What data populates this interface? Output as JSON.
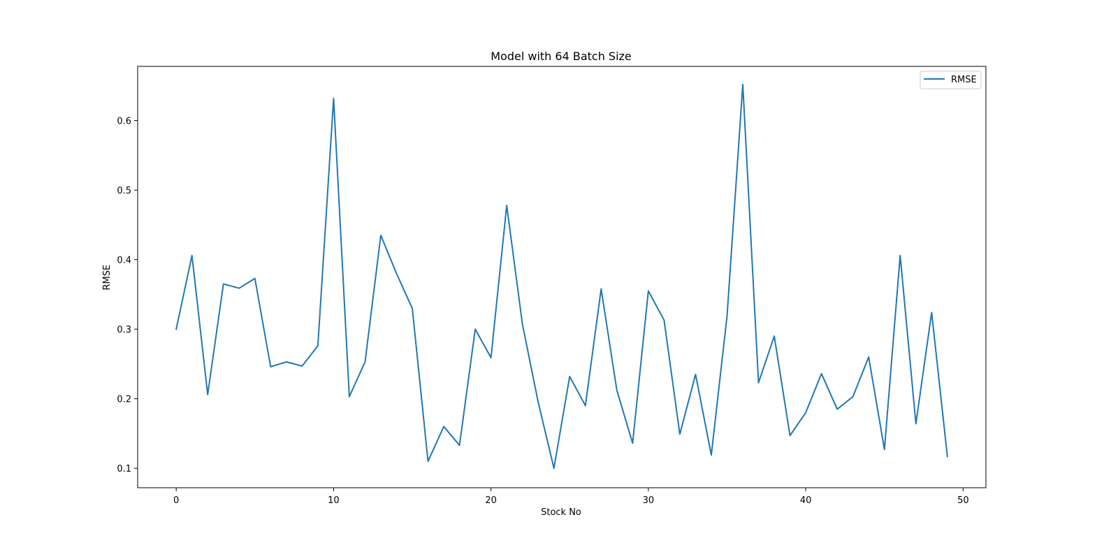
{
  "chart_data": {
    "type": "line",
    "title": "Model with 64 Batch Size",
    "xlabel": "Stock No",
    "ylabel": "RMSE",
    "xlim": [
      -2.45,
      51.45
    ],
    "ylim": [
      0.072,
      0.678
    ],
    "xticks": [
      0,
      10,
      20,
      30,
      40,
      50
    ],
    "yticks": [
      0.1,
      0.2,
      0.3,
      0.4,
      0.5,
      0.6
    ],
    "grid": false,
    "legend_position": "top-right",
    "series": [
      {
        "name": "RMSE",
        "color": "#1f77b4",
        "x": [
          0,
          1,
          2,
          3,
          4,
          5,
          6,
          7,
          8,
          9,
          10,
          11,
          12,
          13,
          14,
          15,
          16,
          17,
          18,
          19,
          20,
          21,
          22,
          23,
          24,
          25,
          26,
          27,
          28,
          29,
          30,
          31,
          32,
          33,
          34,
          35,
          36,
          37,
          38,
          39,
          40,
          41,
          42,
          43,
          44,
          45,
          46,
          47,
          48,
          49
        ],
        "values": [
          0.3,
          0.406,
          0.206,
          0.365,
          0.359,
          0.373,
          0.246,
          0.253,
          0.247,
          0.276,
          0.632,
          0.203,
          0.253,
          0.435,
          0.38,
          0.33,
          0.11,
          0.16,
          0.133,
          0.3,
          0.259,
          0.478,
          0.307,
          0.195,
          0.1,
          0.232,
          0.19,
          0.358,
          0.212,
          0.136,
          0.355,
          0.313,
          0.149,
          0.235,
          0.119,
          0.319,
          0.652,
          0.223,
          0.29,
          0.147,
          0.18,
          0.236,
          0.185,
          0.203,
          0.26,
          0.127,
          0.406,
          0.164,
          0.324,
          0.117
        ]
      }
    ]
  }
}
